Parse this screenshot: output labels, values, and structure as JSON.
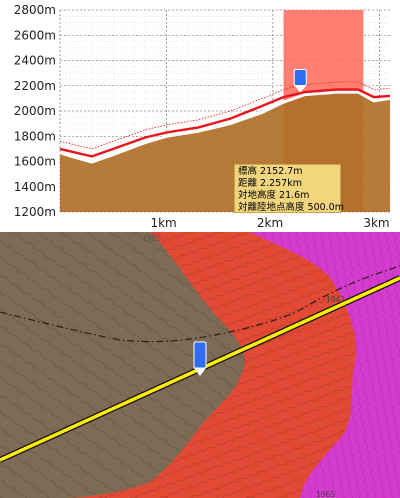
{
  "profile": {
    "y_axis_labels": [
      "2800m",
      "2600m",
      "2400m",
      "2200m",
      "2000m",
      "1800m",
      "1600m",
      "1400m",
      "1200m"
    ],
    "x_axis_labels": [
      "1km",
      "2km",
      "3km"
    ],
    "marker_position_km": 2.257,
    "info": {
      "elevation": "標高 2152.7m",
      "distance": "距離 2.257km",
      "ground_height": "対地高度 21.6m",
      "takeoff_height": "対離陸地点高度 500.0m"
    },
    "colors": {
      "flight_line": "#e8141c",
      "terrain": "#b06f28",
      "highlight": "#ff6a5a",
      "marker": "#2e6cf0"
    }
  },
  "map": {
    "contour_labels": [
      "1985",
      "1943",
      "1965"
    ],
    "colors": {
      "route_line": "#ffee00",
      "zone_red": "#e24a35",
      "zone_magenta": "#d63bd0",
      "terrain": "#7d6b55"
    }
  },
  "chart_data": {
    "type": "line",
    "title": "",
    "xlabel": "",
    "ylabel": "",
    "x_unit": "km",
    "y_unit": "m",
    "xlim": [
      0,
      3.1
    ],
    "ylim": [
      1200,
      2800
    ],
    "grid": true,
    "series": [
      {
        "x": [
          0,
          0.15,
          0.3,
          0.5,
          0.8,
          1.0,
          1.3,
          1.6,
          1.9,
          2.1,
          2.3,
          2.6,
          2.8,
          2.95,
          3.1
        ],
        "values": [
          1700,
          1670,
          1640,
          1700,
          1790,
          1830,
          1870,
          1940,
          2040,
          2110,
          2150,
          2170,
          2170,
          2110,
          2120
        ]
      },
      {
        "x": [
          0,
          0.15,
          0.3,
          0.5,
          0.8,
          1.0,
          1.3,
          1.6,
          1.9,
          2.1,
          2.3,
          2.6,
          2.8,
          2.95,
          3.1
        ],
        "values": [
          1670,
          1630,
          1595,
          1655,
          1750,
          1800,
          1840,
          1900,
          1990,
          2070,
          2130,
          2150,
          2150,
          2080,
          2100
        ]
      }
    ],
    "highlight_range_km": [
      2.1,
      2.85
    ]
  }
}
